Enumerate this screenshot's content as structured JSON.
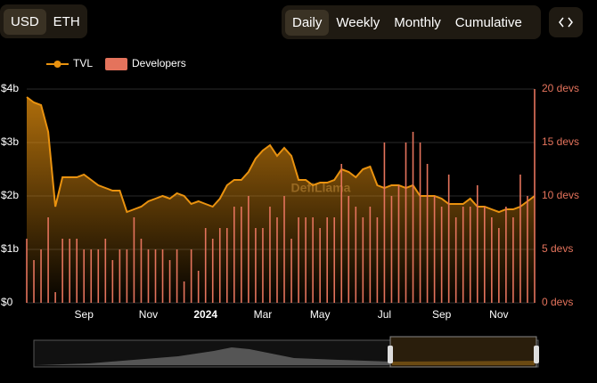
{
  "controls": {
    "currency": [
      "USD",
      "ETH"
    ],
    "interval": [
      "Daily",
      "Weekly",
      "Monthly",
      "Cumulative"
    ]
  },
  "chart_data": {
    "type": "line",
    "watermark": "DefiLlama",
    "categories": [
      null,
      null,
      null,
      null,
      null,
      null,
      null,
      null,
      "Sep",
      null,
      null,
      null,
      null,
      null,
      null,
      null,
      null,
      "Nov",
      null,
      null,
      null,
      null,
      null,
      null,
      null,
      "2024",
      null,
      null,
      null,
      null,
      null,
      null,
      null,
      "Mar",
      null,
      null,
      null,
      null,
      null,
      null,
      null,
      "May",
      null,
      null,
      null,
      null,
      null,
      null,
      null,
      null,
      "Jul",
      null,
      null,
      null,
      null,
      null,
      null,
      null,
      "Sep",
      null,
      null,
      null,
      null,
      null,
      null,
      null,
      "Nov",
      null,
      null,
      null,
      null,
      null
    ],
    "series": [
      {
        "name": "TVL",
        "color": "#e9920f",
        "values": [
          3.85,
          3.75,
          3.7,
          3.2,
          1.8,
          2.35,
          2.35,
          2.35,
          2.4,
          2.3,
          2.2,
          2.15,
          2.1,
          2.1,
          1.7,
          1.75,
          1.8,
          1.9,
          1.95,
          2.0,
          1.95,
          2.05,
          2.0,
          1.85,
          1.9,
          1.85,
          1.8,
          1.95,
          2.2,
          2.3,
          2.3,
          2.45,
          2.7,
          2.85,
          2.95,
          2.75,
          2.9,
          2.75,
          2.3,
          2.3,
          2.2,
          2.25,
          2.25,
          2.3,
          2.5,
          2.45,
          2.35,
          2.5,
          2.55,
          2.2,
          2.15,
          2.2,
          2.2,
          2.15,
          2.2,
          2.0,
          2.0,
          2.0,
          1.95,
          1.85,
          1.85,
          1.85,
          1.95,
          1.8,
          1.8,
          1.75,
          1.7,
          1.75,
          1.75,
          1.8,
          1.9,
          2.0
        ]
      },
      {
        "name": "Developers",
        "type": "bar",
        "axis": "y2",
        "color": "#e4735c",
        "values": [
          6,
          4,
          5,
          8,
          1,
          6,
          6,
          6,
          5,
          5,
          5,
          6,
          4,
          5,
          5,
          8,
          6,
          5,
          5,
          5,
          4,
          5,
          2,
          5,
          3,
          7,
          6,
          7,
          7,
          9,
          9,
          10,
          7,
          7,
          9,
          8,
          10,
          6,
          8,
          8,
          8,
          7,
          8,
          8,
          13,
          10,
          9,
          8,
          9,
          8,
          15,
          10,
          11,
          15,
          16,
          15,
          13,
          10,
          9,
          12,
          8,
          9,
          9,
          11,
          9,
          8,
          7,
          9,
          8,
          12,
          10,
          20
        ]
      }
    ],
    "ylim": [
      0,
      4
    ],
    "yticks": [
      {
        "value": 0,
        "label": "$0"
      },
      {
        "value": 1,
        "label": "$1b"
      },
      {
        "value": 2,
        "label": "$2b"
      },
      {
        "value": 3,
        "label": "$3b"
      },
      {
        "value": 4,
        "label": "$4b"
      }
    ],
    "y2lim": [
      0,
      20
    ],
    "y2ticks": [
      {
        "value": 0,
        "label": "0 devs"
      },
      {
        "value": 5,
        "label": "5 devs"
      },
      {
        "value": 10,
        "label": "10 devs"
      },
      {
        "value": 15,
        "label": "15 devs"
      },
      {
        "value": 20,
        "label": "20 devs"
      }
    ],
    "grid": true
  }
}
